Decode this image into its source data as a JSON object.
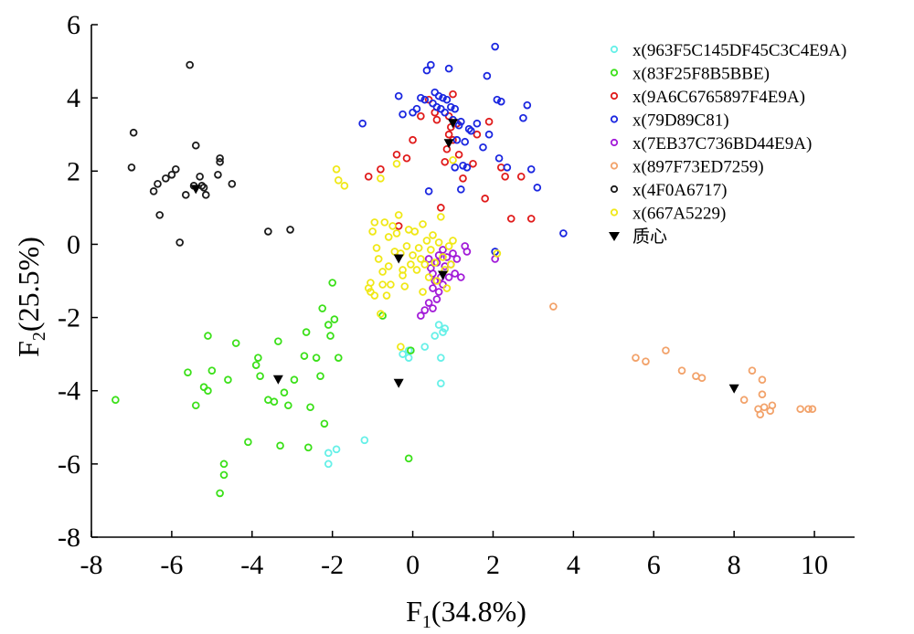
{
  "chart_data": {
    "type": "scatter",
    "xlabel": {
      "main": "F",
      "sub": "1",
      "tail": "(34.8%)"
    },
    "ylabel": {
      "main": "F",
      "sub": "2",
      "tail": "(25.5%)"
    },
    "xlim": [
      -8,
      11
    ],
    "ylim": [
      -8,
      6
    ],
    "xticks": [
      -8,
      -6,
      -4,
      -2,
      0,
      2,
      4,
      6,
      8,
      10
    ],
    "yticks": [
      -8,
      -6,
      -4,
      -2,
      0,
      2,
      4,
      6
    ],
    "grid": false,
    "legend_position": "top-right",
    "series": [
      {
        "name": "x(963F5C145DF45C3C4E9A)",
        "color": "#66f0e8",
        "marker": "circle",
        "points": [
          [
            -2.1,
            -5.7
          ],
          [
            -2.1,
            -6.0
          ],
          [
            -1.9,
            -5.6
          ],
          [
            -1.2,
            -5.35
          ],
          [
            -0.25,
            -3.0
          ],
          [
            -0.1,
            -3.1
          ],
          [
            -0.1,
            -2.9
          ],
          [
            0.3,
            -2.8
          ],
          [
            0.55,
            -2.5
          ],
          [
            0.65,
            -2.2
          ],
          [
            0.7,
            -3.1
          ],
          [
            0.7,
            -3.8
          ],
          [
            0.75,
            -2.4
          ],
          [
            0.8,
            -2.3
          ]
        ]
      },
      {
        "name": "x(83F25F8B5BBE)",
        "color": "#3be019",
        "marker": "circle",
        "points": [
          [
            -7.4,
            -4.25
          ],
          [
            -5.6,
            -3.5
          ],
          [
            -5.4,
            -4.4
          ],
          [
            -5.2,
            -3.9
          ],
          [
            -5.1,
            -4.0
          ],
          [
            -5.1,
            -2.5
          ],
          [
            -5.0,
            -3.45
          ],
          [
            -4.6,
            -3.7
          ],
          [
            -4.4,
            -2.7
          ],
          [
            -4.1,
            -5.4
          ],
          [
            -3.9,
            -3.3
          ],
          [
            -3.85,
            -3.1
          ],
          [
            -3.8,
            -3.6
          ],
          [
            -3.6,
            -4.25
          ],
          [
            -3.45,
            -4.3
          ],
          [
            -3.35,
            -2.65
          ],
          [
            -3.3,
            -5.5
          ],
          [
            -3.2,
            -4.05
          ],
          [
            -3.1,
            -4.4
          ],
          [
            -2.95,
            -3.7
          ],
          [
            -2.7,
            -3.05
          ],
          [
            -2.65,
            -2.4
          ],
          [
            -2.55,
            -4.45
          ],
          [
            -2.6,
            -5.55
          ],
          [
            -2.4,
            -3.1
          ],
          [
            -2.3,
            -3.6
          ],
          [
            -2.25,
            -1.75
          ],
          [
            -2.2,
            -4.9
          ],
          [
            -2.1,
            -2.2
          ],
          [
            -2.05,
            -2.5
          ],
          [
            -2.0,
            -1.05
          ],
          [
            -1.85,
            -3.1
          ],
          [
            -4.7,
            -6.0
          ],
          [
            -4.7,
            -6.3
          ],
          [
            -4.8,
            -6.8
          ],
          [
            -0.1,
            -5.85
          ],
          [
            -0.75,
            -1.95
          ],
          [
            -0.05,
            -2.9
          ],
          [
            -1.95,
            -2.05
          ]
        ]
      },
      {
        "name": "x(9A6C6765897F4E9A)",
        "color": "#e01a1a",
        "marker": "circle",
        "points": [
          [
            -1.1,
            1.85
          ],
          [
            -0.8,
            2.05
          ],
          [
            -0.4,
            2.45
          ],
          [
            -0.15,
            2.35
          ],
          [
            0.0,
            2.85
          ],
          [
            0.2,
            3.5
          ],
          [
            0.4,
            3.95
          ],
          [
            0.55,
            3.6
          ],
          [
            0.6,
            3.4
          ],
          [
            0.7,
            1.0
          ],
          [
            0.8,
            2.25
          ],
          [
            0.85,
            2.6
          ],
          [
            0.9,
            3.0
          ],
          [
            0.95,
            3.2
          ],
          [
            1.0,
            4.1
          ],
          [
            1.1,
            3.3
          ],
          [
            1.15,
            2.45
          ],
          [
            1.25,
            1.8
          ],
          [
            1.5,
            2.2
          ],
          [
            1.6,
            3.0
          ],
          [
            1.8,
            1.25
          ],
          [
            1.9,
            3.35
          ],
          [
            2.2,
            2.1
          ],
          [
            2.3,
            1.85
          ],
          [
            2.45,
            0.7
          ],
          [
            2.7,
            1.85
          ],
          [
            2.95,
            0.7
          ],
          [
            -0.35,
            0.5
          ],
          [
            0.9,
            3.5
          ],
          [
            1.0,
            2.85
          ]
        ]
      },
      {
        "name": "x(79D89C81)",
        "color": "#1a26e0",
        "marker": "circle",
        "points": [
          [
            -1.25,
            3.3
          ],
          [
            -0.35,
            4.05
          ],
          [
            -0.25,
            3.55
          ],
          [
            0.0,
            3.6
          ],
          [
            0.1,
            3.7
          ],
          [
            0.2,
            4.0
          ],
          [
            0.3,
            3.95
          ],
          [
            0.35,
            4.75
          ],
          [
            0.45,
            4.9
          ],
          [
            0.5,
            3.85
          ],
          [
            0.55,
            4.15
          ],
          [
            0.6,
            3.75
          ],
          [
            0.65,
            4.05
          ],
          [
            0.7,
            3.7
          ],
          [
            0.75,
            4.0
          ],
          [
            0.8,
            3.6
          ],
          [
            0.85,
            3.95
          ],
          [
            0.9,
            4.8
          ],
          [
            0.95,
            3.75
          ],
          [
            1.0,
            3.4
          ],
          [
            1.05,
            3.7
          ],
          [
            1.1,
            2.85
          ],
          [
            1.15,
            3.25
          ],
          [
            1.2,
            3.35
          ],
          [
            1.25,
            2.15
          ],
          [
            1.3,
            2.8
          ],
          [
            1.4,
            3.15
          ],
          [
            1.45,
            3.1
          ],
          [
            1.6,
            3.3
          ],
          [
            1.75,
            2.65
          ],
          [
            1.85,
            4.6
          ],
          [
            1.9,
            3.0
          ],
          [
            2.05,
            5.4
          ],
          [
            2.1,
            3.95
          ],
          [
            2.2,
            3.9
          ],
          [
            2.35,
            2.1
          ],
          [
            2.75,
            3.45
          ],
          [
            2.85,
            3.8
          ],
          [
            2.95,
            2.05
          ],
          [
            3.1,
            1.55
          ],
          [
            3.75,
            0.3
          ],
          [
            0.4,
            1.45
          ],
          [
            1.05,
            2.1
          ],
          [
            1.2,
            1.5
          ],
          [
            1.35,
            2.1
          ],
          [
            2.05,
            -0.2
          ],
          [
            2.15,
            2.35
          ]
        ]
      },
      {
        "name": "x(7EB37C736BD44E9A)",
        "color": "#a21bd8",
        "marker": "circle",
        "points": [
          [
            0.4,
            -0.4
          ],
          [
            0.45,
            -0.65
          ],
          [
            0.5,
            -0.8
          ],
          [
            0.5,
            -1.2
          ],
          [
            0.55,
            -1.0
          ],
          [
            0.6,
            -0.5
          ],
          [
            0.6,
            -1.5
          ],
          [
            0.65,
            -0.3
          ],
          [
            0.65,
            -1.3
          ],
          [
            0.7,
            -0.9
          ],
          [
            0.75,
            -0.15
          ],
          [
            0.75,
            -1.1
          ],
          [
            0.8,
            -0.6
          ],
          [
            0.85,
            -0.35
          ],
          [
            0.9,
            -0.9
          ],
          [
            0.95,
            -0.55
          ],
          [
            1.0,
            -0.25
          ],
          [
            1.05,
            -0.8
          ],
          [
            1.1,
            -0.4
          ],
          [
            1.2,
            -0.9
          ],
          [
            1.3,
            -0.05
          ],
          [
            1.35,
            -0.2
          ],
          [
            0.2,
            -1.95
          ],
          [
            0.3,
            -1.8
          ],
          [
            0.4,
            -1.6
          ],
          [
            2.05,
            -0.4
          ],
          [
            0.5,
            -1.75
          ]
        ]
      },
      {
        "name": "x(897F73ED7259)",
        "color": "#f2a26a",
        "marker": "circle",
        "points": [
          [
            3.5,
            -1.7
          ],
          [
            5.55,
            -3.1
          ],
          [
            5.8,
            -3.2
          ],
          [
            6.3,
            -2.9
          ],
          [
            6.7,
            -3.45
          ],
          [
            7.05,
            -3.6
          ],
          [
            7.2,
            -3.65
          ],
          [
            8.25,
            -4.25
          ],
          [
            8.45,
            -3.45
          ],
          [
            8.6,
            -4.5
          ],
          [
            8.65,
            -4.65
          ],
          [
            8.7,
            -3.7
          ],
          [
            8.7,
            -4.1
          ],
          [
            8.75,
            -4.45
          ],
          [
            8.9,
            -4.55
          ],
          [
            8.95,
            -4.4
          ],
          [
            9.65,
            -4.5
          ],
          [
            9.85,
            -4.5
          ],
          [
            9.95,
            -4.5
          ]
        ]
      },
      {
        "name": "x(4F0A6717)",
        "color": "#1a1a1a",
        "marker": "circle",
        "points": [
          [
            -7.0,
            2.1
          ],
          [
            -6.95,
            3.05
          ],
          [
            -6.45,
            1.45
          ],
          [
            -6.35,
            1.65
          ],
          [
            -6.3,
            0.8
          ],
          [
            -6.15,
            1.8
          ],
          [
            -6.0,
            1.9
          ],
          [
            -5.9,
            2.05
          ],
          [
            -5.8,
            0.05
          ],
          [
            -5.65,
            1.35
          ],
          [
            -5.55,
            4.9
          ],
          [
            -5.45,
            1.6
          ],
          [
            -5.4,
            2.7
          ],
          [
            -5.3,
            1.85
          ],
          [
            -5.25,
            1.6
          ],
          [
            -5.2,
            1.55
          ],
          [
            -5.15,
            1.35
          ],
          [
            -4.85,
            1.9
          ],
          [
            -4.8,
            2.25
          ],
          [
            -4.8,
            2.35
          ],
          [
            -4.5,
            1.65
          ],
          [
            -3.6,
            0.35
          ],
          [
            -3.05,
            0.4
          ]
        ]
      },
      {
        "name": "x(667A5229)",
        "color": "#f0e817",
        "marker": "circle",
        "points": [
          [
            -1.9,
            2.05
          ],
          [
            -1.85,
            1.75
          ],
          [
            -1.7,
            1.6
          ],
          [
            -1.05,
            -1.05
          ],
          [
            -1.05,
            -1.3
          ],
          [
            -0.95,
            0.6
          ],
          [
            -0.9,
            -0.1
          ],
          [
            -0.85,
            -0.4
          ],
          [
            -0.75,
            -0.75
          ],
          [
            -0.75,
            -1.1
          ],
          [
            -0.7,
            0.6
          ],
          [
            -0.65,
            -1.4
          ],
          [
            -0.6,
            -0.6
          ],
          [
            -0.55,
            -1.1
          ],
          [
            -0.5,
            0.5
          ],
          [
            -0.45,
            -0.2
          ],
          [
            -0.4,
            0.3
          ],
          [
            -0.35,
            0.8
          ],
          [
            -0.3,
            -0.25
          ],
          [
            -0.25,
            -0.7
          ],
          [
            -0.2,
            -1.15
          ],
          [
            -0.15,
            -0.05
          ],
          [
            -0.1,
            0.4
          ],
          [
            -0.05,
            -0.55
          ],
          [
            0.0,
            -0.3
          ],
          [
            0.05,
            0.35
          ],
          [
            0.1,
            -0.7
          ],
          [
            0.15,
            -0.1
          ],
          [
            0.2,
            -0.4
          ],
          [
            0.25,
            -1.3
          ],
          [
            0.3,
            -0.55
          ],
          [
            0.35,
            0.1
          ],
          [
            0.4,
            -0.9
          ],
          [
            0.45,
            -0.15
          ],
          [
            0.5,
            0.25
          ],
          [
            0.55,
            -0.5
          ],
          [
            0.6,
            -1.0
          ],
          [
            0.65,
            0.05
          ],
          [
            0.7,
            0.75
          ],
          [
            0.75,
            -0.35
          ],
          [
            0.8,
            -0.7
          ],
          [
            0.85,
            -1.2
          ],
          [
            0.9,
            -0.05
          ],
          [
            0.95,
            -0.55
          ],
          [
            1.0,
            0.1
          ],
          [
            -1.0,
            0.35
          ],
          [
            -0.6,
            0.2
          ],
          [
            -0.8,
            -1.9
          ],
          [
            -0.3,
            -2.8
          ],
          [
            1.0,
            2.3
          ],
          [
            2.1,
            -0.25
          ],
          [
            -0.95,
            -1.4
          ],
          [
            -0.4,
            2.2
          ],
          [
            -0.8,
            1.8
          ],
          [
            -1.1,
            -1.2
          ],
          [
            -0.25,
            -0.85
          ],
          [
            0.25,
            0.55
          ]
        ]
      },
      {
        "name": "质心",
        "color": "#000000",
        "marker": "triangle-down",
        "points": [
          [
            -5.4,
            1.5
          ],
          [
            -3.35,
            -3.7
          ],
          [
            -0.35,
            -3.8
          ],
          [
            -0.35,
            -0.4
          ],
          [
            0.75,
            -0.85
          ],
          [
            0.9,
            2.75
          ],
          [
            1.0,
            3.3
          ],
          [
            8.0,
            -3.95
          ]
        ]
      }
    ]
  }
}
